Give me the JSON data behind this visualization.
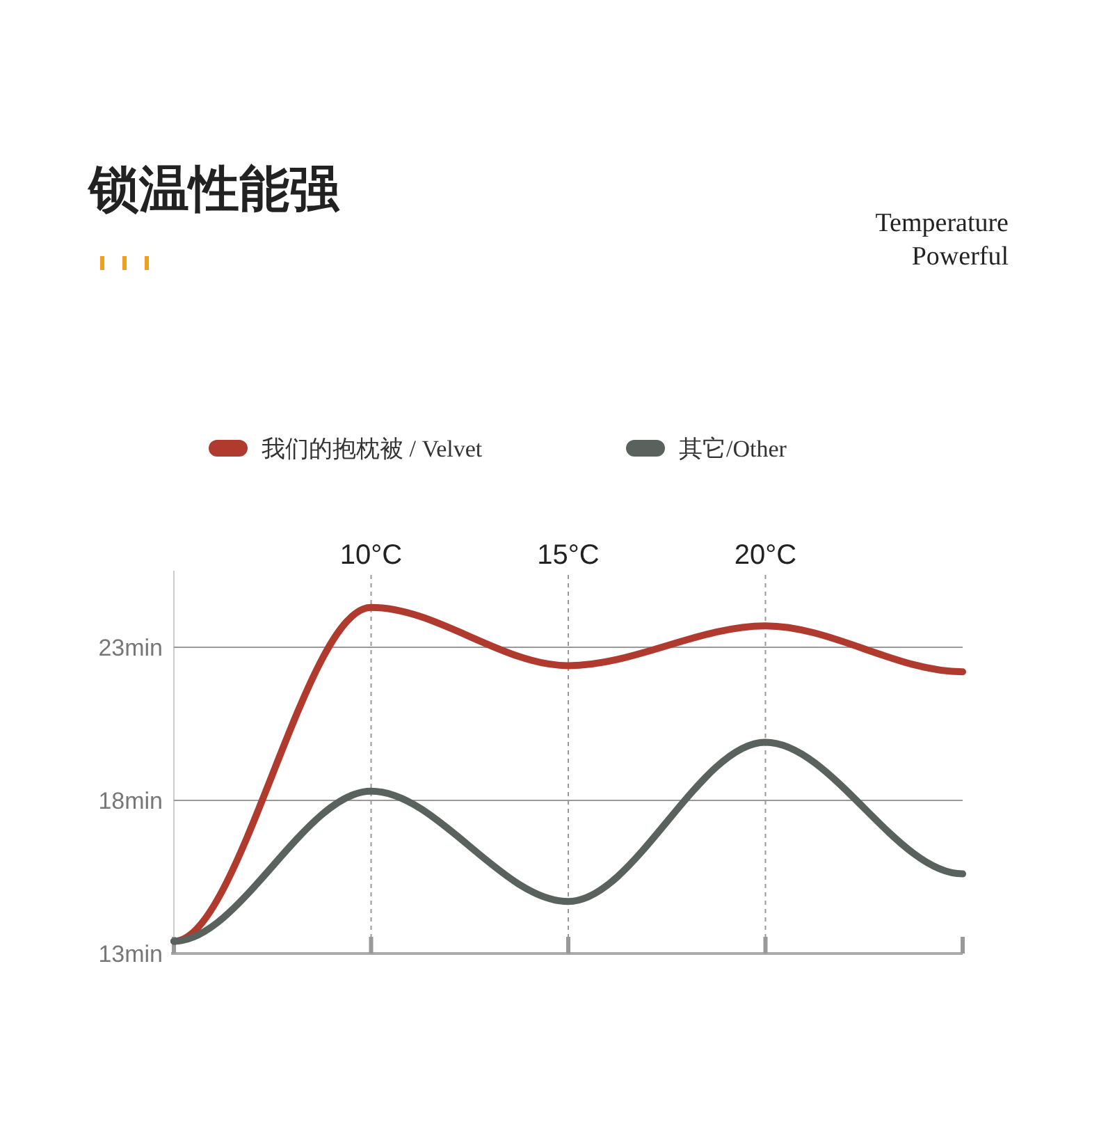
{
  "chart_data": {
    "type": "line",
    "title": "锁温性能强",
    "subtitle": "Temperature Powerful",
    "categories": [
      null,
      "10°C",
      "15°C",
      "20°C",
      null
    ],
    "series": [
      {
        "name": "我们的抱枕被 / Velvet",
        "color": "#b03a2e",
        "values": [
          13.4,
          24.3,
          22.4,
          23.7,
          22.2
        ]
      },
      {
        "name": "其它/Other",
        "color": "#5a625e",
        "values": [
          13.4,
          18.3,
          14.7,
          19.9,
          15.6
        ]
      }
    ],
    "ylim": [
      13,
      25.5
    ],
    "yticks": [
      {
        "value": 13,
        "label": "13min"
      },
      {
        "value": 18,
        "label": "18min"
      },
      {
        "value": 23,
        "label": "23min"
      }
    ],
    "grid": "y",
    "legend": "top",
    "marker": "none",
    "line_style": "solid",
    "ref_lines": [
      {
        "axis": "x",
        "value": "10°C",
        "line_style": "dashed",
        "color": "#999999"
      },
      {
        "axis": "x",
        "value": "15°C",
        "line_style": "dashed",
        "color": "#999999"
      },
      {
        "axis": "x",
        "value": "20°C",
        "line_style": "dashed",
        "color": "#999999"
      }
    ]
  }
}
